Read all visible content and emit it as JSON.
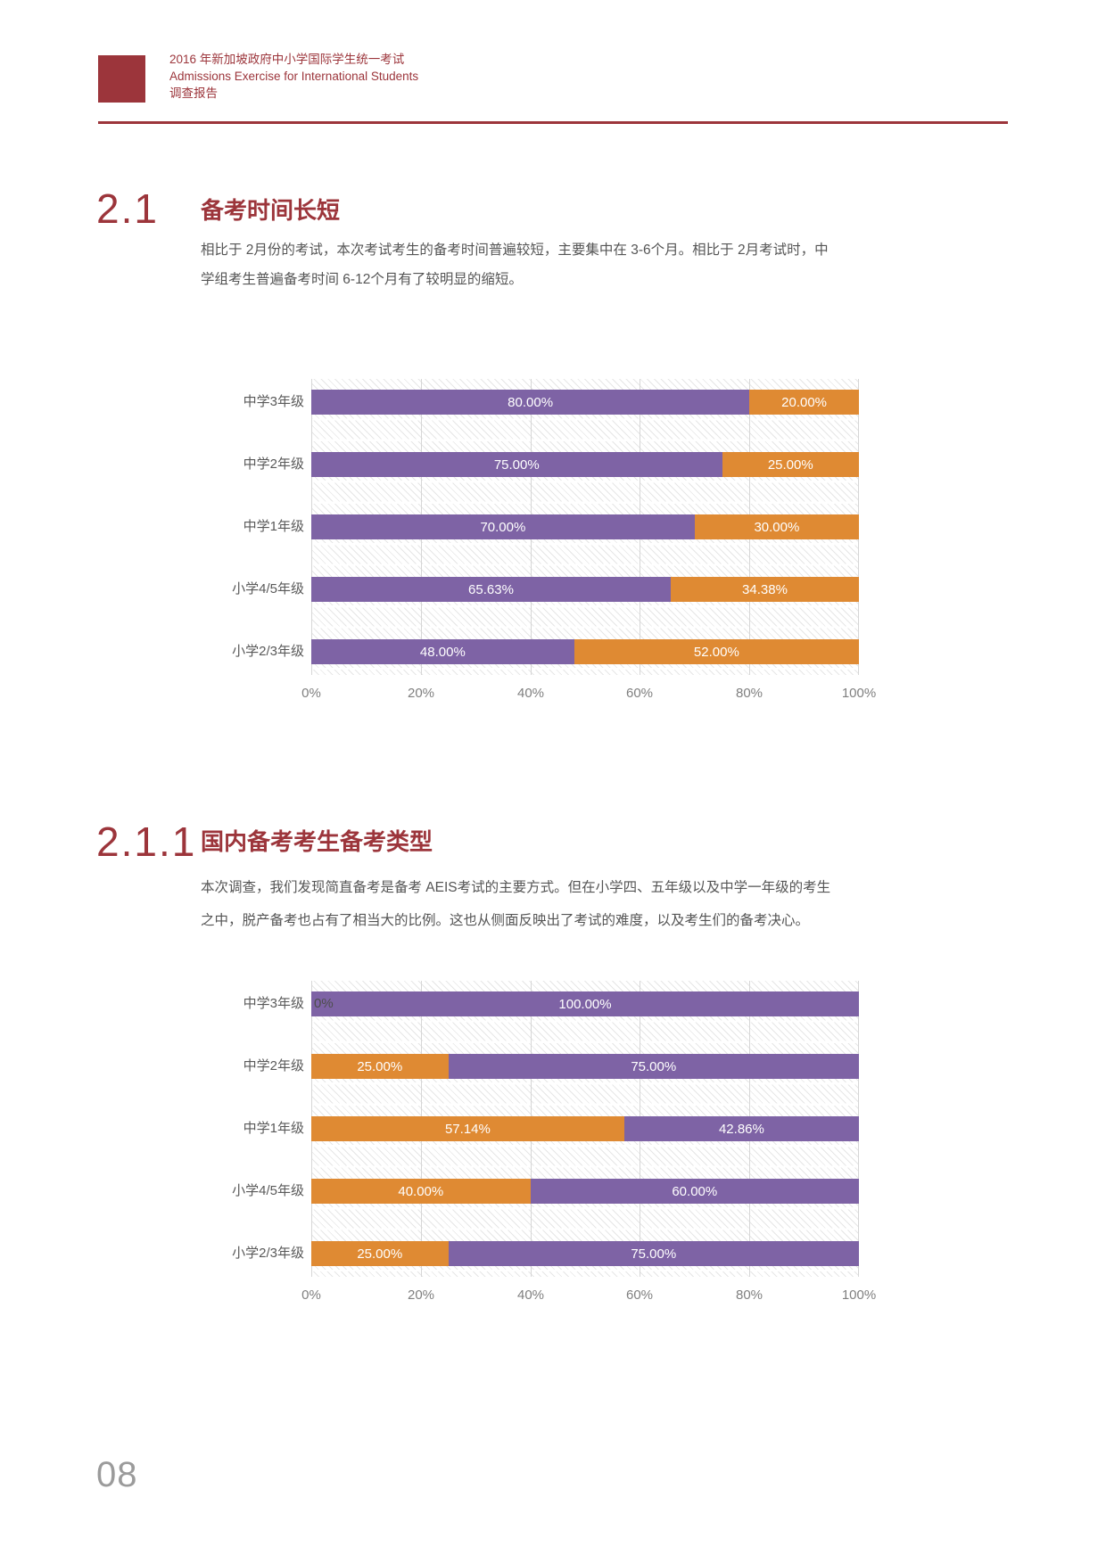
{
  "header": {
    "line1": "2016 年新加坡政府中小学国际学生统一考试",
    "line2": "Admissions Exercise for International Students",
    "line3": "调查报告"
  },
  "sections": [
    {
      "number": "2.1",
      "title": "备考时间长短",
      "body": "相比于 2月份的考试，本次考试考生的备考时间普遍较短，主要集中在 3-6个月。相比于 2月考试时，中学组考生普遍备考时间 6-12个月有了较明显的缩短。"
    },
    {
      "number": "2.1.1",
      "title": "国内备考考生备考类型",
      "body": "本次调查，我们发现简直备考是备考 AEIS考试的主要方式。但在小学四、五年级以及中学一年级的考生之中，脱产备考也占有了相当大的比例。这也从侧面反映出了考试的难度，以及考生们的备考决心。"
    }
  ],
  "page_number": "08",
  "colors": {
    "brand_red": "#9C353B",
    "purple": "#7E63A5",
    "orange": "#DF8A33"
  },
  "chart_data": [
    {
      "id": "prep-duration-by-grade",
      "type": "bar",
      "orientation": "horizontal",
      "stacked": true,
      "grid": true,
      "legend": "none",
      "xlim": [
        0,
        100
      ],
      "x_ticks": [
        "0%",
        "20%",
        "40%",
        "60%",
        "80%",
        "100%"
      ],
      "categories": [
        "中学3年级",
        "中学2年级",
        "中学1年级",
        "小学4/5年级",
        "小学2/3年级"
      ],
      "series": [
        {
          "name": "purple-series",
          "color": "#7E63A5",
          "values": [
            80.0,
            75.0,
            70.0,
            65.63,
            48.0
          ],
          "labels": [
            "80.00%",
            "75.00%",
            "70.00%",
            "65.63%",
            "48.00%"
          ]
        },
        {
          "name": "orange-series",
          "color": "#DF8A33",
          "values": [
            20.0,
            25.0,
            30.0,
            34.38,
            52.0
          ],
          "labels": [
            "20.00%",
            "25.00%",
            "30.00%",
            "34.38%",
            "52.00%"
          ]
        }
      ]
    },
    {
      "id": "prep-type-domestic",
      "type": "bar",
      "orientation": "horizontal",
      "stacked": true,
      "grid": true,
      "legend": "none",
      "xlim": [
        0,
        100
      ],
      "x_ticks": [
        "0%",
        "20%",
        "40%",
        "60%",
        "80%",
        "100%"
      ],
      "categories": [
        "中学3年级",
        "中学2年级",
        "中学1年级",
        "小学4/5年级",
        "小学2/3年级"
      ],
      "series": [
        {
          "name": "orange-series",
          "color": "#DF8A33",
          "values": [
            0,
            25.0,
            57.14,
            40.0,
            25.0
          ],
          "labels": [
            "0%",
            "25.00%",
            "57.14%",
            "40.00%",
            "25.00%"
          ]
        },
        {
          "name": "purple-series",
          "color": "#7E63A5",
          "values": [
            100.0,
            75.0,
            42.86,
            60.0,
            75.0
          ],
          "labels": [
            "100.00%",
            "75.00%",
            "42.86%",
            "60.00%",
            "75.00%"
          ]
        }
      ]
    }
  ]
}
